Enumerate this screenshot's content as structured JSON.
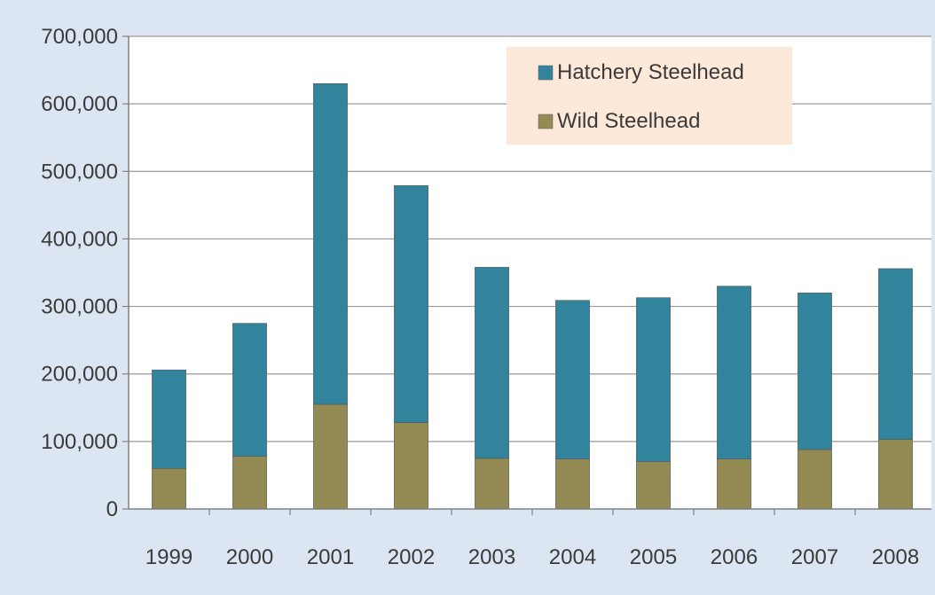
{
  "chart_data": {
    "type": "bar",
    "stacked": true,
    "title": "",
    "xlabel": "",
    "ylabel": "",
    "categories": [
      "1999",
      "2000",
      "2001",
      "2002",
      "2003",
      "2004",
      "2005",
      "2006",
      "2007",
      "2008"
    ],
    "series": [
      {
        "name": "Wild Steelhead",
        "color": "#948a54",
        "values": [
          60000,
          78000,
          155000,
          128000,
          75000,
          74000,
          70000,
          74000,
          88000,
          103000
        ]
      },
      {
        "name": "Hatchery Steelhead",
        "color": "#31849b",
        "values": [
          146000,
          197000,
          475000,
          351000,
          283000,
          235000,
          243000,
          256000,
          232000,
          253000
        ]
      }
    ],
    "ylim": [
      0,
      700000
    ],
    "yticks": [
      0,
      100000,
      200000,
      300000,
      400000,
      500000,
      600000,
      700000
    ],
    "ytick_labels": [
      "0",
      "100,000",
      "200,000",
      "300,000",
      "400,000",
      "500,000",
      "600,000",
      "700,000"
    ],
    "grid": true,
    "legend": {
      "placement": "top-right",
      "order": [
        "Hatchery Steelhead",
        "Wild Steelhead"
      ],
      "background": "#fde9d9"
    },
    "colors": {
      "background": "#dce6f2",
      "plot_background": "#ffffff",
      "gridline": "#9a9a9a"
    }
  }
}
